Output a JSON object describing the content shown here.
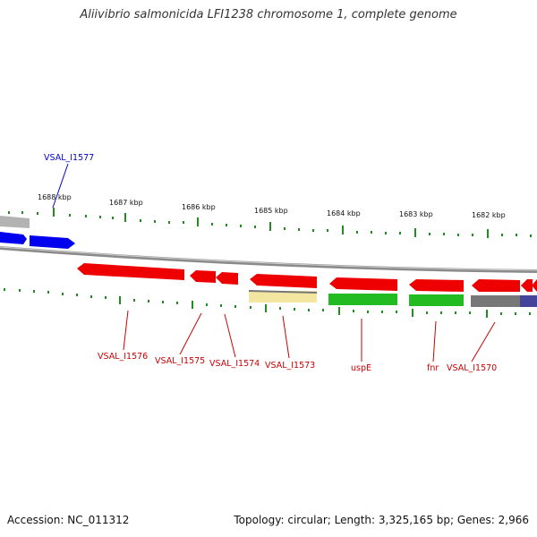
{
  "title": "Aliivibrio salmonicida LFI1238 chromosome 1, complete genome",
  "footer": {
    "accession": "Accession: NC_011312",
    "topology": "Topology: circular; Length: 3,325,165 bp; Genes: 2,966"
  },
  "colors": {
    "forward_gene": "#0000ee",
    "reverse_gene": "#ee0000",
    "yellow_feature": "#f2e6a0",
    "green_feature": "#22bb22",
    "gray_feature": "#777777",
    "purple_feature": "#44449a",
    "light_gray_feature": "#b3b3b3",
    "tick": "#228b22",
    "backbone": "#8a8a8a",
    "label_blue": "#0000cc",
    "label_red": "#cc0000"
  },
  "scale": {
    "labels": [
      "1688 kbp",
      "1687 kbp",
      "1686 kbp",
      "1685 kbp",
      "1684 kbp",
      "1683 kbp",
      "1682 kbp"
    ]
  },
  "genes": {
    "top_labels": [
      "VSAL_I1577"
    ],
    "bottom_labels": [
      "VSAL_I1576",
      "VSAL_I1575",
      "VSAL_I1574",
      "VSAL_I1573",
      "uspE",
      "fnr",
      "VSAL_I1570"
    ]
  }
}
